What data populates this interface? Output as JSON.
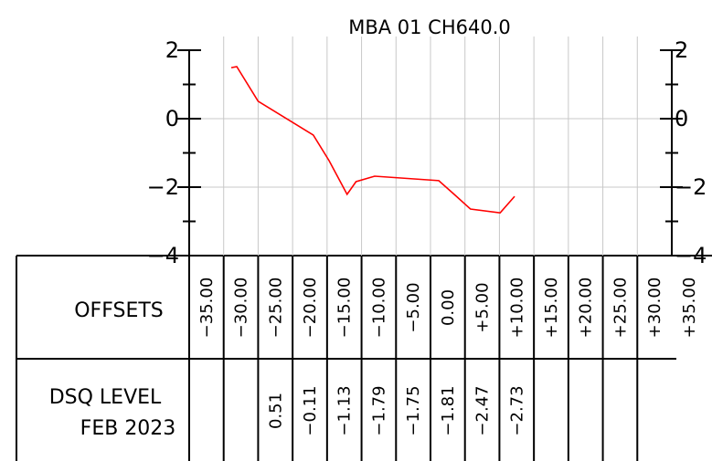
{
  "chart_data": {
    "type": "line",
    "title": "MBA  01  CH640.0",
    "x": [
      -31.4,
      -30.6,
      -27.5,
      -19.5,
      -17.2,
      -14.6,
      -13.3,
      -10.6,
      -1.3,
      1.1,
      3.3,
      7.6,
      9.7
    ],
    "values": [
      1.49,
      1.52,
      0.51,
      -0.48,
      -1.23,
      -2.21,
      -1.84,
      -1.68,
      -1.81,
      -2.24,
      -2.64,
      -2.75,
      -2.27
    ],
    "color": "#ff0000",
    "xlim": [
      -37.5,
      32.5
    ],
    "ylim": [
      -4,
      2
    ],
    "yticks": [
      2,
      0,
      {
        "value": -2,
        "label": "−2"
      },
      {
        "value": -4,
        "label": "−4"
      }
    ],
    "minor_yticks": [
      1,
      -1,
      -3
    ],
    "xgrid": [
      -32.5,
      -27.5,
      -22.5,
      -17.5,
      -12.5,
      -7.5,
      -2.5,
      2.5,
      7.5,
      12.5,
      17.5,
      22.5,
      27.5
    ],
    "grid": true,
    "table": {
      "row_labels": [
        "OFFSETS",
        "DSQ LEVEL",
        "FEB 2023"
      ],
      "offsets": [
        "−35.00",
        "−30.00",
        "−25.00",
        "−20.00",
        "−15.00",
        "−10.00",
        "−5.00",
        "0.00",
        "+5.00",
        "+10.00",
        "+15.00",
        "+20.00",
        "+25.00",
        "+30.00",
        "+35.00"
      ],
      "levels": [
        null,
        null,
        "0.51",
        "−0.11",
        "−1.13",
        "−1.79",
        "−1.75",
        "−1.81",
        "−2.47",
        "−2.73",
        null,
        null,
        null,
        null,
        null
      ]
    }
  }
}
